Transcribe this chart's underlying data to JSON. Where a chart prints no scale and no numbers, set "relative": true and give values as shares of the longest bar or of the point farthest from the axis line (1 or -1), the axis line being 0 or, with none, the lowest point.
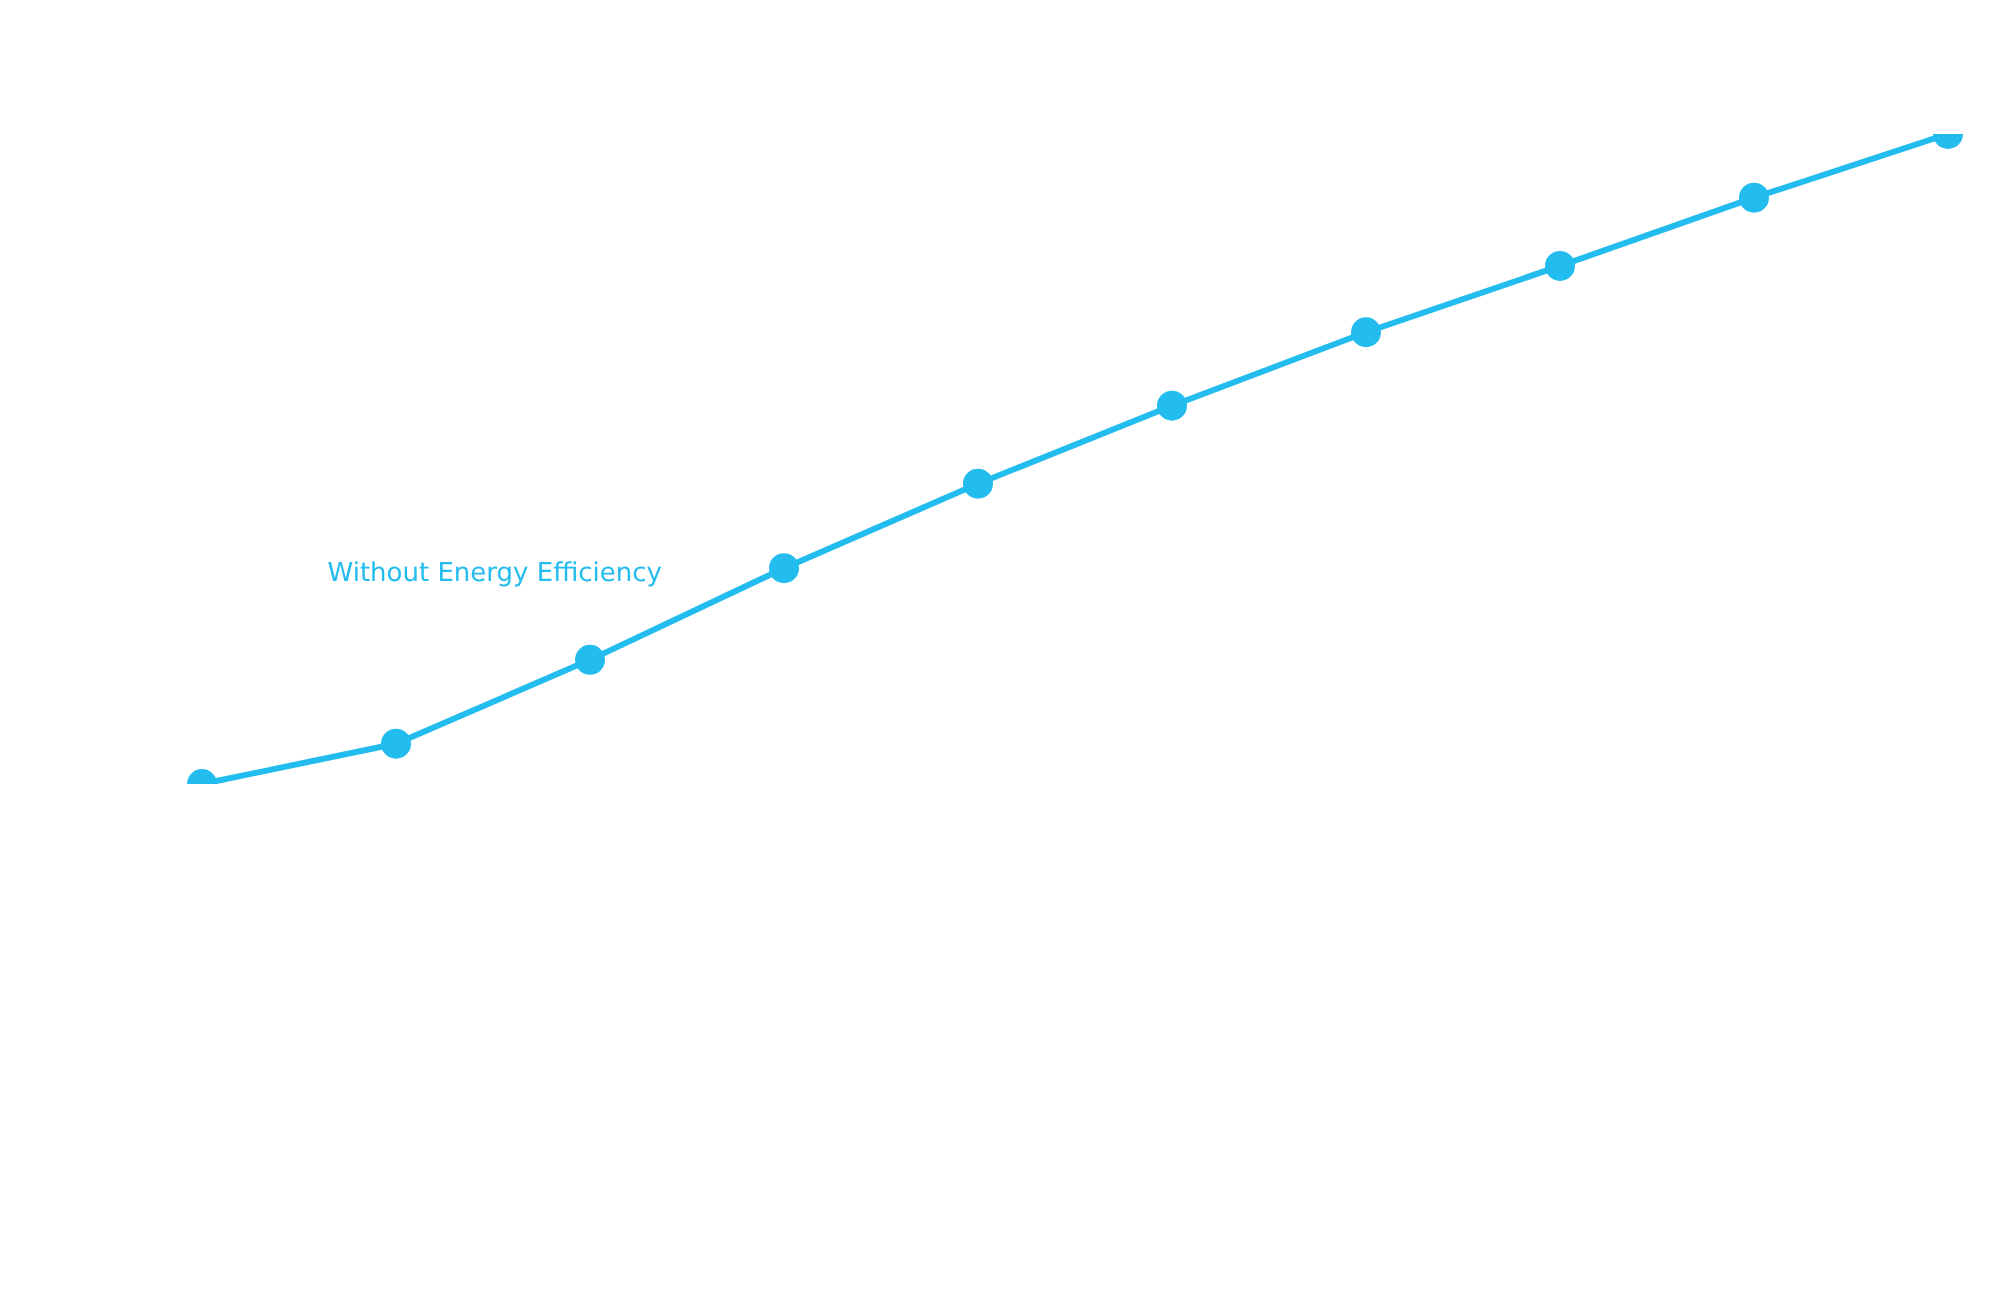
{
  "chart_data": {
    "type": "line",
    "relative": true,
    "marker": "circle",
    "legend": false,
    "categories": [
      null,
      null,
      null,
      null,
      null,
      null,
      null,
      null,
      null,
      null
    ],
    "series": [
      {
        "name": "Without Energy Efficiency",
        "color": "#22bcee",
        "values": [
          0,
          0.062,
          0.191,
          0.332,
          0.462,
          0.582,
          0.695,
          0.797,
          0.902,
          1
        ]
      }
    ]
  }
}
